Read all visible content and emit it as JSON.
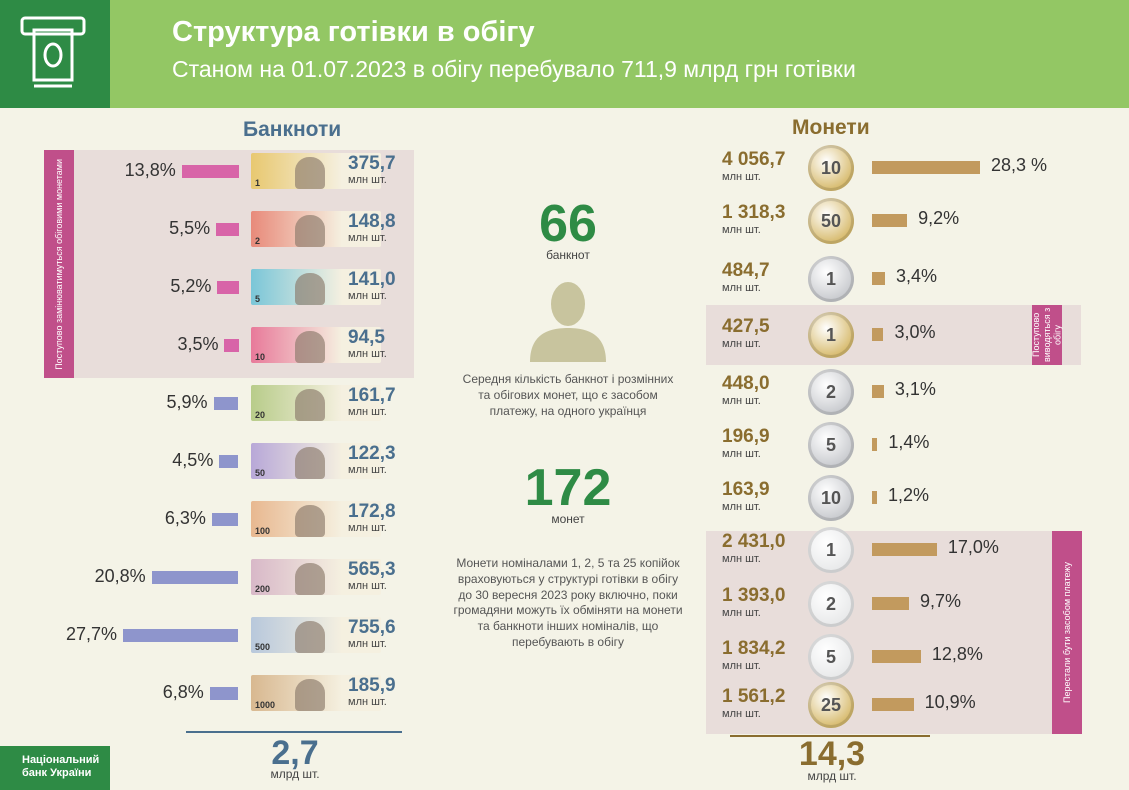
{
  "header": {
    "title": "Структура готівки в обігу",
    "subtitle": "Станом на 01.07.2023 в обігу перебувало 711,9 млрд грн готівки"
  },
  "colors": {
    "banner_green": "#2e8b45",
    "light_green": "#93c764",
    "banknote_blue": "#4a6f8e",
    "coin_gold": "#8a6d2f",
    "pink_bar": "#d864a8",
    "blue_bar": "#8e95cc",
    "coin_bar": "#c29a5e",
    "pink_tag": "#c04f8a"
  },
  "icons": {
    "header_icon": "cash-note-icon",
    "person": "person-silhouette-icon"
  },
  "banknotes": {
    "title": "Банкноти",
    "tag": "Поступово замінюватимуться обіговими монетами",
    "unit": "млн шт.",
    "total": "2,7",
    "total_unit": "млрд шт."
  },
  "coins": {
    "title": "Монети",
    "tag_withdrawn": "Поступово виводяться з обігу",
    "tag_stopped": "Перестали бути засобом платежу",
    "unit": "млн шт.",
    "total": "14,3",
    "total_unit": "млрд шт."
  },
  "middle": {
    "banknotes_per_person": "66",
    "banknotes_label": "банкнот",
    "caption": "Середня кількість банкнот і розмінних та обігових монет, що є засобом платежу, на одного українця",
    "coins_per_person": "172",
    "coins_label": "монет",
    "note": "Монети номіналами 1, 2, 5 та 25 копійок враховуються у структурі готівки в обігу до 30 вересня 2023 року включно, поки громадяни можуть їх обміняти на монети та банкноти інших номіналів, що перебувають в обігу"
  },
  "logo": {
    "line1": "Національний",
    "line2": "банк України"
  },
  "chart_data": [
    {
      "type": "bar",
      "title": "Банкноти",
      "categories": [
        "1",
        "2",
        "5",
        "10",
        "20",
        "50",
        "100",
        "200",
        "500",
        "1000"
      ],
      "values": [
        375.7,
        148.8,
        141.0,
        94.5,
        161.7,
        122.3,
        172.8,
        565.3,
        755.6,
        185.9
      ],
      "value_labels": [
        "375,7",
        "148,8",
        "141,0",
        "94,5",
        "161,7",
        "122,3",
        "172,8",
        "565,3",
        "755,6",
        "185,9"
      ],
      "shares": [
        13.8,
        5.5,
        5.2,
        3.5,
        5.9,
        4.5,
        6.3,
        20.8,
        27.7,
        6.8
      ],
      "share_labels": [
        "13,8%",
        "5,5%",
        "5,2%",
        "3,5%",
        "5,9%",
        "4,5%",
        "6,3%",
        "20,8%",
        "27,7%",
        "6,8%"
      ]
    },
    {
      "type": "bar",
      "title": "Монети",
      "categories": [
        "10 коп.",
        "50 коп.",
        "1 грн",
        "1 грн (старого зразка)",
        "2 грн",
        "5 грн",
        "10 грн",
        "1 коп.",
        "2 коп.",
        "5 коп.",
        "25 коп."
      ],
      "coin_labels": [
        "10",
        "50",
        "1",
        "1",
        "2",
        "5",
        "10",
        "1",
        "2",
        "5",
        "25"
      ],
      "values": [
        4056.7,
        1318.3,
        484.7,
        427.5,
        448.0,
        196.9,
        163.9,
        2431.0,
        1393.0,
        1834.2,
        1561.2
      ],
      "value_labels": [
        "4 056,7",
        "1 318,3",
        "484,7",
        "427,5",
        "448,0",
        "196,9",
        "163,9",
        "2 431,0",
        "1 393,0",
        "1 834,2",
        "1 561,2"
      ],
      "shares": [
        28.3,
        9.2,
        3.4,
        3.0,
        3.1,
        1.4,
        1.2,
        17.0,
        9.7,
        12.8,
        10.9
      ],
      "share_labels": [
        "28,3 %",
        "9,2%",
        "3,4%",
        "3,0%",
        "3,1%",
        "1,4%",
        "1,2%",
        "17,0%",
        "9,7%",
        "12,8%",
        "10,9%"
      ],
      "coin_colors": [
        "#d8bc70",
        "#d8bc70",
        "#c9cbcf",
        "#d8bc70",
        "#c9cbcf",
        "#c9cbcf",
        "#c9cbcf",
        "#e8e9ea",
        "#e8e9ea",
        "#e8e9ea",
        "#d8bc70"
      ]
    }
  ]
}
